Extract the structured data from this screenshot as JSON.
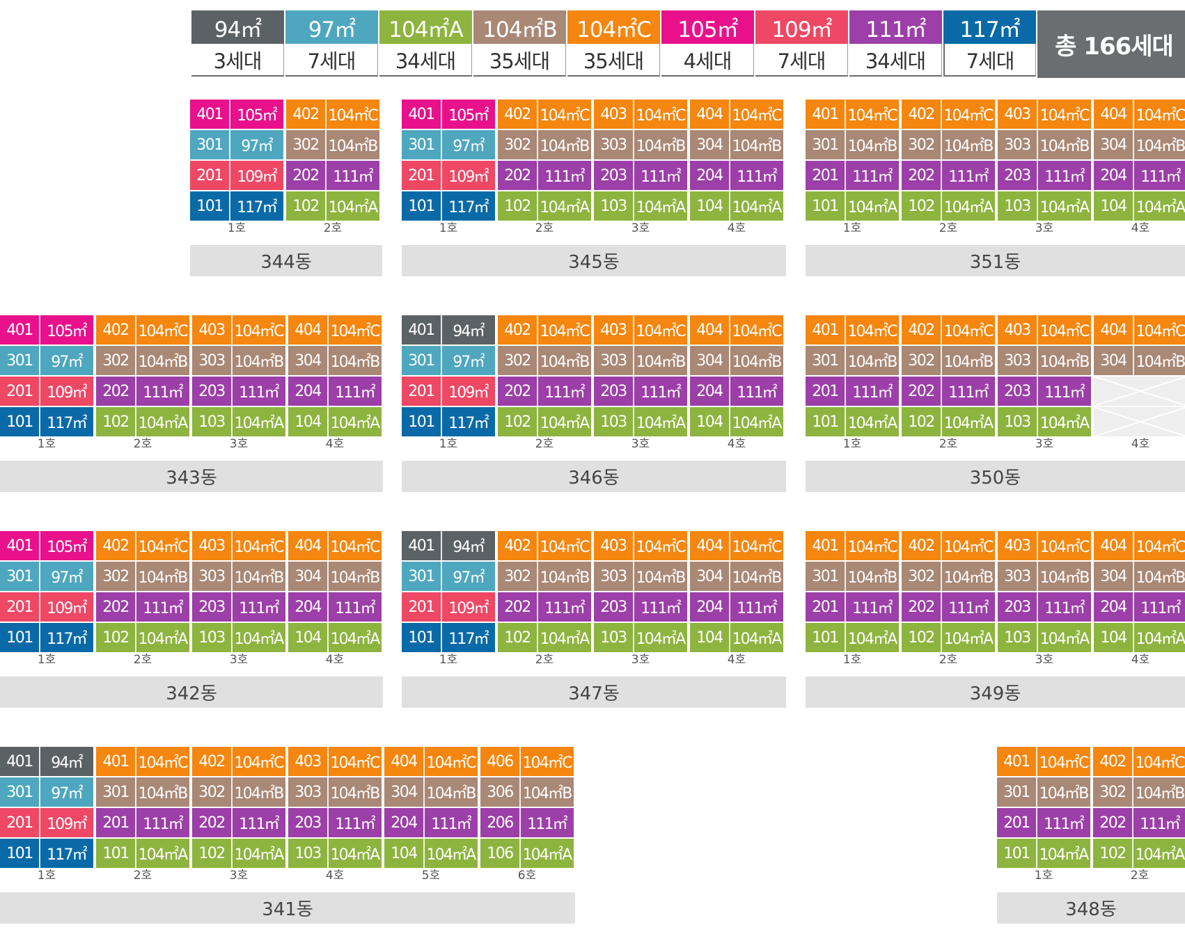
{
  "colors": {
    "94㎡": "#5b6266",
    "97㎡": "#4ea7bf",
    "104㎡A": "#8db43f",
    "104㎡B": "#a98876",
    "104㎡C": "#f5860f",
    "105㎡": "#e8118b",
    "109㎡": "#ee4865",
    "111㎡": "#9c3fa8",
    "117㎡": "#0a6aa8"
  },
  "legend": {
    "types": [
      {
        "type": "94㎡",
        "count": "3세대"
      },
      {
        "type": "97㎡",
        "count": "7세대"
      },
      {
        "type": "104㎡A",
        "count": "34세대"
      },
      {
        "type": "104㎡B",
        "count": "35세대"
      },
      {
        "type": "104㎡C",
        "count": "35세대"
      },
      {
        "type": "105㎡",
        "count": "4세대"
      },
      {
        "type": "109㎡",
        "count": "7세대"
      },
      {
        "type": "111㎡",
        "count": "34세대"
      },
      {
        "type": "117㎡",
        "count": "7세대"
      }
    ],
    "total": "총 166세대"
  },
  "buildings": [
    {
      "name": "344동",
      "units": [
        {
          "label": "1호",
          "cells": [
            {
              "no": "401",
              "type": "105㎡"
            },
            {
              "no": "301",
              "type": "97㎡"
            },
            {
              "no": "201",
              "type": "109㎡"
            },
            {
              "no": "101",
              "type": "117㎡"
            }
          ]
        },
        {
          "label": "2호",
          "cells": [
            {
              "no": "402",
              "type": "104㎡C"
            },
            {
              "no": "302",
              "type": "104㎡B"
            },
            {
              "no": "202",
              "type": "111㎡"
            },
            {
              "no": "102",
              "type": "104㎡A"
            }
          ]
        }
      ]
    },
    {
      "name": "345동",
      "units": [
        {
          "label": "1호",
          "cells": [
            {
              "no": "401",
              "type": "105㎡"
            },
            {
              "no": "301",
              "type": "97㎡"
            },
            {
              "no": "201",
              "type": "109㎡"
            },
            {
              "no": "101",
              "type": "117㎡"
            }
          ]
        },
        {
          "label": "2호",
          "cells": [
            {
              "no": "402",
              "type": "104㎡C"
            },
            {
              "no": "302",
              "type": "104㎡B"
            },
            {
              "no": "202",
              "type": "111㎡"
            },
            {
              "no": "102",
              "type": "104㎡A"
            }
          ]
        },
        {
          "label": "3호",
          "cells": [
            {
              "no": "403",
              "type": "104㎡C"
            },
            {
              "no": "303",
              "type": "104㎡B"
            },
            {
              "no": "203",
              "type": "111㎡"
            },
            {
              "no": "103",
              "type": "104㎡A"
            }
          ]
        },
        {
          "label": "4호",
          "cells": [
            {
              "no": "404",
              "type": "104㎡C"
            },
            {
              "no": "304",
              "type": "104㎡B"
            },
            {
              "no": "204",
              "type": "111㎡"
            },
            {
              "no": "104",
              "type": "104㎡A"
            }
          ]
        }
      ]
    },
    {
      "name": "351동",
      "units": [
        {
          "label": "1호",
          "cells": [
            {
              "no": "401",
              "type": "104㎡C"
            },
            {
              "no": "301",
              "type": "104㎡B"
            },
            {
              "no": "201",
              "type": "111㎡"
            },
            {
              "no": "101",
              "type": "104㎡A"
            }
          ]
        },
        {
          "label": "2호",
          "cells": [
            {
              "no": "402",
              "type": "104㎡C"
            },
            {
              "no": "302",
              "type": "104㎡B"
            },
            {
              "no": "202",
              "type": "111㎡"
            },
            {
              "no": "102",
              "type": "104㎡A"
            }
          ]
        },
        {
          "label": "3호",
          "cells": [
            {
              "no": "403",
              "type": "104㎡C"
            },
            {
              "no": "303",
              "type": "104㎡B"
            },
            {
              "no": "203",
              "type": "111㎡"
            },
            {
              "no": "103",
              "type": "104㎡A"
            }
          ]
        },
        {
          "label": "4호",
          "cells": [
            {
              "no": "404",
              "type": "104㎡C"
            },
            {
              "no": "304",
              "type": "104㎡B"
            },
            {
              "no": "204",
              "type": "111㎡"
            },
            {
              "no": "104",
              "type": "104㎡A"
            }
          ]
        }
      ]
    },
    {
      "name": "343동",
      "units": [
        {
          "label": "1호",
          "cells": [
            {
              "no": "401",
              "type": "105㎡"
            },
            {
              "no": "301",
              "type": "97㎡"
            },
            {
              "no": "201",
              "type": "109㎡"
            },
            {
              "no": "101",
              "type": "117㎡"
            }
          ]
        },
        {
          "label": "2호",
          "cells": [
            {
              "no": "402",
              "type": "104㎡C"
            },
            {
              "no": "302",
              "type": "104㎡B"
            },
            {
              "no": "202",
              "type": "111㎡"
            },
            {
              "no": "102",
              "type": "104㎡A"
            }
          ]
        },
        {
          "label": "3호",
          "cells": [
            {
              "no": "403",
              "type": "104㎡C"
            },
            {
              "no": "303",
              "type": "104㎡B"
            },
            {
              "no": "203",
              "type": "111㎡"
            },
            {
              "no": "103",
              "type": "104㎡A"
            }
          ]
        },
        {
          "label": "4호",
          "cells": [
            {
              "no": "404",
              "type": "104㎡C"
            },
            {
              "no": "304",
              "type": "104㎡B"
            },
            {
              "no": "204",
              "type": "111㎡"
            },
            {
              "no": "104",
              "type": "104㎡A"
            }
          ]
        }
      ]
    },
    {
      "name": "346동",
      "units": [
        {
          "label": "1호",
          "cells": [
            {
              "no": "401",
              "type": "94㎡"
            },
            {
              "no": "301",
              "type": "97㎡"
            },
            {
              "no": "201",
              "type": "109㎡"
            },
            {
              "no": "101",
              "type": "117㎡"
            }
          ]
        },
        {
          "label": "2호",
          "cells": [
            {
              "no": "402",
              "type": "104㎡C"
            },
            {
              "no": "302",
              "type": "104㎡B"
            },
            {
              "no": "202",
              "type": "111㎡"
            },
            {
              "no": "102",
              "type": "104㎡A"
            }
          ]
        },
        {
          "label": "3호",
          "cells": [
            {
              "no": "403",
              "type": "104㎡C"
            },
            {
              "no": "303",
              "type": "104㎡B"
            },
            {
              "no": "203",
              "type": "111㎡"
            },
            {
              "no": "103",
              "type": "104㎡A"
            }
          ]
        },
        {
          "label": "4호",
          "cells": [
            {
              "no": "404",
              "type": "104㎡C"
            },
            {
              "no": "304",
              "type": "104㎡B"
            },
            {
              "no": "204",
              "type": "111㎡"
            },
            {
              "no": "104",
              "type": "104㎡A"
            }
          ]
        }
      ]
    },
    {
      "name": "350동",
      "units": [
        {
          "label": "1호",
          "cells": [
            {
              "no": "401",
              "type": "104㎡C"
            },
            {
              "no": "301",
              "type": "104㎡B"
            },
            {
              "no": "201",
              "type": "111㎡"
            },
            {
              "no": "101",
              "type": "104㎡A"
            }
          ]
        },
        {
          "label": "2호",
          "cells": [
            {
              "no": "402",
              "type": "104㎡C"
            },
            {
              "no": "302",
              "type": "104㎡B"
            },
            {
              "no": "202",
              "type": "111㎡"
            },
            {
              "no": "102",
              "type": "104㎡A"
            }
          ]
        },
        {
          "label": "3호",
          "cells": [
            {
              "no": "403",
              "type": "104㎡C"
            },
            {
              "no": "303",
              "type": "104㎡B"
            },
            {
              "no": "203",
              "type": "111㎡"
            },
            {
              "no": "103",
              "type": "104㎡A"
            }
          ]
        },
        {
          "label": "4호",
          "cells": [
            {
              "no": "404",
              "type": "104㎡C"
            },
            {
              "no": "304",
              "type": "104㎡B"
            },
            null,
            null
          ]
        }
      ]
    },
    {
      "name": "342동",
      "units": [
        {
          "label": "1호",
          "cells": [
            {
              "no": "401",
              "type": "105㎡"
            },
            {
              "no": "301",
              "type": "97㎡"
            },
            {
              "no": "201",
              "type": "109㎡"
            },
            {
              "no": "101",
              "type": "117㎡"
            }
          ]
        },
        {
          "label": "2호",
          "cells": [
            {
              "no": "402",
              "type": "104㎡C"
            },
            {
              "no": "302",
              "type": "104㎡B"
            },
            {
              "no": "202",
              "type": "111㎡"
            },
            {
              "no": "102",
              "type": "104㎡A"
            }
          ]
        },
        {
          "label": "3호",
          "cells": [
            {
              "no": "403",
              "type": "104㎡C"
            },
            {
              "no": "303",
              "type": "104㎡B"
            },
            {
              "no": "203",
              "type": "111㎡"
            },
            {
              "no": "103",
              "type": "104㎡A"
            }
          ]
        },
        {
          "label": "4호",
          "cells": [
            {
              "no": "404",
              "type": "104㎡C"
            },
            {
              "no": "304",
              "type": "104㎡B"
            },
            {
              "no": "204",
              "type": "111㎡"
            },
            {
              "no": "104",
              "type": "104㎡A"
            }
          ]
        }
      ]
    },
    {
      "name": "347동",
      "units": [
        {
          "label": "1호",
          "cells": [
            {
              "no": "401",
              "type": "94㎡"
            },
            {
              "no": "301",
              "type": "97㎡"
            },
            {
              "no": "201",
              "type": "109㎡"
            },
            {
              "no": "101",
              "type": "117㎡"
            }
          ]
        },
        {
          "label": "2호",
          "cells": [
            {
              "no": "402",
              "type": "104㎡C"
            },
            {
              "no": "302",
              "type": "104㎡B"
            },
            {
              "no": "202",
              "type": "111㎡"
            },
            {
              "no": "102",
              "type": "104㎡A"
            }
          ]
        },
        {
          "label": "3호",
          "cells": [
            {
              "no": "403",
              "type": "104㎡C"
            },
            {
              "no": "303",
              "type": "104㎡B"
            },
            {
              "no": "203",
              "type": "111㎡"
            },
            {
              "no": "103",
              "type": "104㎡A"
            }
          ]
        },
        {
          "label": "4호",
          "cells": [
            {
              "no": "404",
              "type": "104㎡C"
            },
            {
              "no": "304",
              "type": "104㎡B"
            },
            {
              "no": "204",
              "type": "111㎡"
            },
            {
              "no": "104",
              "type": "104㎡A"
            }
          ]
        }
      ]
    },
    {
      "name": "349동",
      "units": [
        {
          "label": "1호",
          "cells": [
            {
              "no": "401",
              "type": "104㎡C"
            },
            {
              "no": "301",
              "type": "104㎡B"
            },
            {
              "no": "201",
              "type": "111㎡"
            },
            {
              "no": "101",
              "type": "104㎡A"
            }
          ]
        },
        {
          "label": "2호",
          "cells": [
            {
              "no": "402",
              "type": "104㎡C"
            },
            {
              "no": "302",
              "type": "104㎡B"
            },
            {
              "no": "202",
              "type": "111㎡"
            },
            {
              "no": "102",
              "type": "104㎡A"
            }
          ]
        },
        {
          "label": "3호",
          "cells": [
            {
              "no": "403",
              "type": "104㎡C"
            },
            {
              "no": "303",
              "type": "104㎡B"
            },
            {
              "no": "203",
              "type": "111㎡"
            },
            {
              "no": "103",
              "type": "104㎡A"
            }
          ]
        },
        {
          "label": "4호",
          "cells": [
            {
              "no": "404",
              "type": "104㎡C"
            },
            {
              "no": "304",
              "type": "104㎡B"
            },
            {
              "no": "204",
              "type": "111㎡"
            },
            {
              "no": "104",
              "type": "104㎡A"
            }
          ]
        }
      ]
    },
    {
      "name": "341동",
      "units": [
        {
          "label": "1호",
          "cells": [
            {
              "no": "401",
              "type": "94㎡"
            },
            {
              "no": "301",
              "type": "97㎡"
            },
            {
              "no": "201",
              "type": "109㎡"
            },
            {
              "no": "101",
              "type": "117㎡"
            }
          ]
        },
        {
          "label": "2호",
          "cells": [
            {
              "no": "401",
              "type": "104㎡C"
            },
            {
              "no": "301",
              "type": "104㎡B"
            },
            {
              "no": "201",
              "type": "111㎡"
            },
            {
              "no": "101",
              "type": "104㎡A"
            }
          ]
        },
        {
          "label": "3호",
          "cells": [
            {
              "no": "402",
              "type": "104㎡C"
            },
            {
              "no": "302",
              "type": "104㎡B"
            },
            {
              "no": "202",
              "type": "111㎡"
            },
            {
              "no": "102",
              "type": "104㎡A"
            }
          ]
        },
        {
          "label": "4호",
          "cells": [
            {
              "no": "403",
              "type": "104㎡C"
            },
            {
              "no": "303",
              "type": "104㎡B"
            },
            {
              "no": "203",
              "type": "111㎡"
            },
            {
              "no": "103",
              "type": "104㎡A"
            }
          ]
        },
        {
          "label": "5호",
          "cells": [
            {
              "no": "404",
              "type": "104㎡C"
            },
            {
              "no": "304",
              "type": "104㎡B"
            },
            {
              "no": "204",
              "type": "111㎡"
            },
            {
              "no": "104",
              "type": "104㎡A"
            }
          ]
        },
        {
          "label": "6호",
          "cells": [
            {
              "no": "406",
              "type": "104㎡C"
            },
            {
              "no": "306",
              "type": "104㎡B"
            },
            {
              "no": "206",
              "type": "111㎡"
            },
            {
              "no": "106",
              "type": "104㎡A"
            }
          ]
        }
      ]
    },
    {
      "name": "348동",
      "units": [
        {
          "label": "1호",
          "cells": [
            {
              "no": "401",
              "type": "104㎡C"
            },
            {
              "no": "301",
              "type": "104㎡B"
            },
            {
              "no": "201",
              "type": "111㎡"
            },
            {
              "no": "101",
              "type": "104㎡A"
            }
          ]
        },
        {
          "label": "2호",
          "cells": [
            {
              "no": "402",
              "type": "104㎡C"
            },
            {
              "no": "302",
              "type": "104㎡B"
            },
            {
              "no": "202",
              "type": "111㎡"
            },
            {
              "no": "102",
              "type": "104㎡A"
            }
          ]
        }
      ]
    }
  ]
}
